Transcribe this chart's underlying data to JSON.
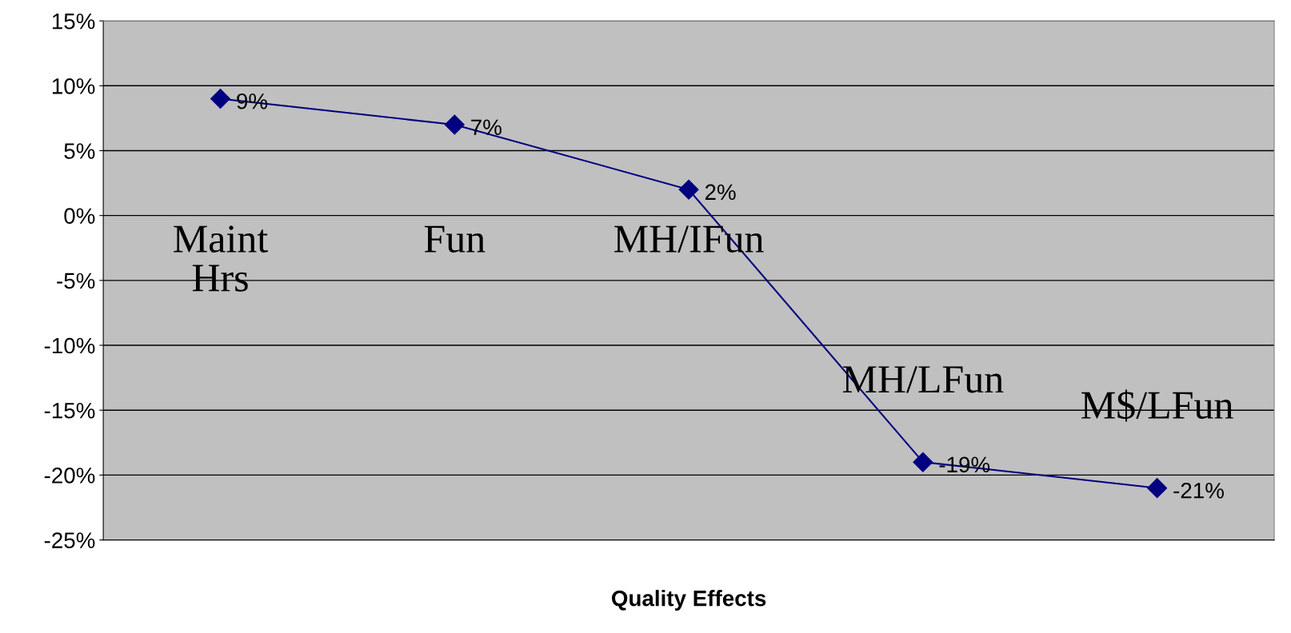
{
  "chart_data": {
    "type": "line",
    "xlabel": "Quality Effects",
    "categories": [
      "Maint\nHrs",
      "Fun",
      "MH/IFun",
      "MH/LFun",
      "M$/LFun"
    ],
    "series": [
      {
        "color": "#000080",
        "values": [
          9,
          7,
          2,
          -19,
          -21
        ],
        "value_labels": [
          "9%",
          "7%",
          "2%",
          "-19%",
          "-21%"
        ]
      }
    ],
    "ylim": [
      -25,
      15
    ],
    "yticks": [
      {
        "value": -25,
        "label": "-25%"
      },
      {
        "value": -20,
        "label": "-20%"
      },
      {
        "value": -15,
        "label": "-15%"
      },
      {
        "value": -10,
        "label": "-10%"
      },
      {
        "value": -5,
        "label": "-5%"
      },
      {
        "value": 0,
        "label": "0%"
      },
      {
        "value": 5,
        "label": "5%"
      },
      {
        "value": 10,
        "label": "10%"
      },
      {
        "value": 15,
        "label": "15%"
      }
    ],
    "grid": "y",
    "marker": "diamond",
    "line_style": "solid",
    "legend": false
  }
}
